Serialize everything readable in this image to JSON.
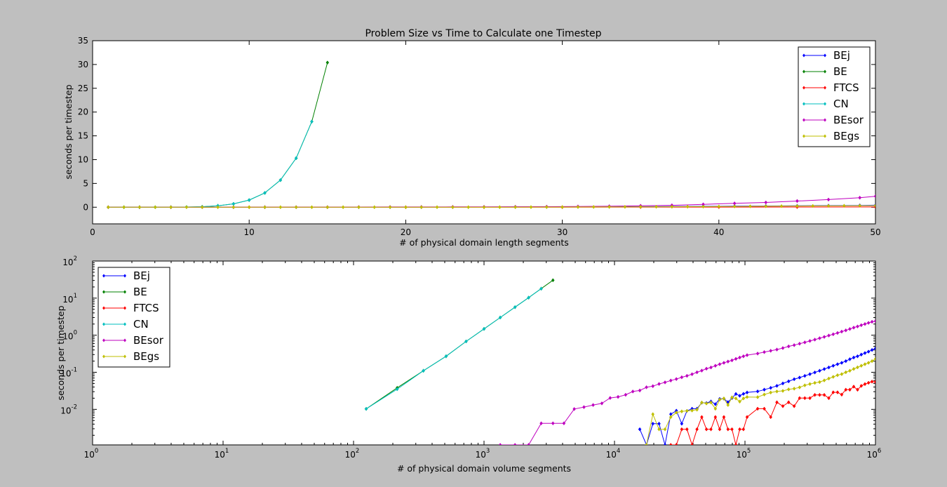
{
  "colors": {
    "figure_background": "#bfbfbf",
    "axes_background": "#ffffff",
    "BEj": "#0000ff",
    "BE": "#008000",
    "FTCS": "#ff0000",
    "CN": "#00bfbf",
    "BEsor": "#bf00bf",
    "BEgs": "#bfbf00"
  },
  "chart_data": [
    {
      "type": "line",
      "title": "Problem Size vs Time to Calculate one Timestep",
      "xlabel": "# of physical domain length segments",
      "ylabel": "seconds per timestep",
      "xlim": [
        0,
        50
      ],
      "ylim": [
        -3.5,
        35
      ],
      "xscale": "linear",
      "yscale": "linear",
      "xticks": [
        0,
        10,
        20,
        30,
        40,
        50
      ],
      "xtick_labels": [
        "0",
        "10",
        "20",
        "30",
        "40",
        "50"
      ],
      "yticks": [
        0,
        5,
        10,
        15,
        20,
        25,
        30,
        35
      ],
      "ytick_labels": [
        "0",
        "5",
        "10",
        "15",
        "20",
        "25",
        "30",
        "35"
      ],
      "legend": {
        "position": "top-right",
        "entries": [
          "BEj",
          "BE",
          "FTCS",
          "CN",
          "BEsor",
          "BEgs"
        ]
      },
      "series": [
        {
          "name": "BEj",
          "x": [
            1,
            3,
            5,
            7,
            9,
            11,
            13,
            15,
            17,
            19,
            21,
            23,
            25,
            27,
            29,
            31,
            33,
            35,
            37,
            39,
            41,
            43,
            45,
            47,
            49,
            50
          ],
          "y": [
            0,
            0,
            0,
            0,
            0.001,
            0.002,
            0.003,
            0.005,
            0.008,
            0.012,
            0.018,
            0.026,
            0.036,
            0.048,
            0.062,
            0.08,
            0.1,
            0.12,
            0.15,
            0.18,
            0.21,
            0.25,
            0.29,
            0.33,
            0.38,
            0.42
          ]
        },
        {
          "name": "BE",
          "x": [
            1,
            2,
            3,
            4,
            5,
            6,
            7,
            8,
            9,
            10,
            11,
            12,
            13,
            14,
            15
          ],
          "y": [
            0,
            0.001,
            0.002,
            0.005,
            0.015,
            0.04,
            0.1,
            0.3,
            0.7,
            1.5,
            3.0,
            5.7,
            10.3,
            18.0,
            30.4
          ]
        },
        {
          "name": "FTCS",
          "x": [
            1,
            5,
            10,
            15,
            20,
            25,
            30,
            35,
            40,
            45,
            50
          ],
          "y": [
            0,
            0,
            0,
            0,
            0.002,
            0.003,
            0.01,
            0.02,
            0.03,
            0.045,
            0.055
          ]
        },
        {
          "name": "CN",
          "x": [
            1,
            2,
            3,
            4,
            5,
            6,
            7,
            8,
            9,
            10,
            11,
            12,
            13,
            14
          ],
          "y": [
            0,
            0.001,
            0.002,
            0.005,
            0.015,
            0.04,
            0.1,
            0.3,
            0.7,
            1.5,
            3.0,
            5.7,
            10.3,
            18.0
          ]
        },
        {
          "name": "BEsor",
          "x": [
            1,
            3,
            5,
            7,
            9,
            11,
            13,
            15,
            17,
            19,
            21,
            23,
            25,
            27,
            29,
            31,
            33,
            35,
            37,
            39,
            41,
            43,
            45,
            47,
            49,
            50
          ],
          "y": [
            0,
            0.001,
            0.002,
            0.004,
            0.01,
            0.015,
            0.02,
            0.03,
            0.04,
            0.05,
            0.06,
            0.07,
            0.08,
            0.1,
            0.12,
            0.15,
            0.2,
            0.3,
            0.4,
            0.6,
            0.8,
            1.0,
            1.3,
            1.6,
            2.0,
            2.3
          ]
        },
        {
          "name": "BEgs",
          "x": [
            1,
            2,
            3,
            4,
            5,
            6,
            7,
            8,
            9,
            10,
            11,
            12,
            13,
            14,
            15,
            16,
            17,
            18,
            19,
            20,
            21,
            22,
            23,
            24,
            25,
            26,
            27,
            28,
            29,
            30,
            31,
            32,
            33,
            34,
            35,
            36,
            37,
            38,
            39,
            40,
            41,
            42,
            43,
            44,
            45,
            46,
            47,
            48,
            49,
            50
          ],
          "y": [
            0,
            0,
            0,
            0,
            0,
            0,
            0,
            0,
            0,
            0,
            0,
            0,
            0,
            0,
            0.001,
            0.001,
            0.001,
            0.002,
            0.002,
            0.003,
            0.004,
            0.005,
            0.006,
            0.008,
            0.01,
            0.012,
            0.015,
            0.02,
            0.025,
            0.03,
            0.04,
            0.05,
            0.06,
            0.07,
            0.08,
            0.09,
            0.1,
            0.11,
            0.12,
            0.14,
            0.16,
            0.18,
            0.2,
            0.22,
            0.24,
            0.26,
            0.28,
            0.3,
            0.32,
            0.33
          ]
        }
      ]
    },
    {
      "type": "line",
      "xlabel": "# of physical domain volume segments",
      "ylabel": "seconds per timestep",
      "xscale": "log",
      "yscale": "log",
      "xlim": [
        1,
        1000000
      ],
      "ylim": [
        0.0011,
        100
      ],
      "xticks": [
        1,
        10,
        100,
        1000,
        10000,
        100000,
        1000000
      ],
      "xtick_base": [
        "10",
        "10",
        "10",
        "10",
        "10",
        "10",
        "10"
      ],
      "xtick_exp": [
        "0",
        "1",
        "2",
        "3",
        "4",
        "5",
        "6"
      ],
      "yticks": [
        0.01,
        0.1,
        1,
        10,
        100
      ],
      "ytick_base": [
        "10",
        "10",
        "10",
        "10",
        "10"
      ],
      "ytick_exp": [
        "-2",
        "-1",
        "0",
        "1",
        "2"
      ],
      "legend": {
        "position": "top-left",
        "entries": [
          "BEj",
          "BE",
          "FTCS",
          "CN",
          "BEsor",
          "BEgs"
        ]
      },
      "series": [
        {
          "name": "BEj",
          "x": [
            15625,
            17576,
            19683,
            21952,
            24389,
            27000,
            29791,
            32768,
            35937,
            39304,
            42875,
            46656,
            50653,
            54872,
            59319,
            64000,
            68921,
            74088,
            79507,
            85184,
            91125,
            97336,
            103823,
            125000,
            140608,
            157464,
            175616,
            195112,
            216000,
            238328,
            262144,
            287496,
            314432,
            343000,
            373248,
            405224,
            438976,
            474552,
            512000,
            551368,
            592704,
            636056,
            681472,
            729000,
            778688,
            830584,
            884736,
            941192,
            1000000
          ],
          "y": [
            0.0029,
            0.0011,
            0.0041,
            0.0041,
            0.0011,
            0.0074,
            0.0092,
            0.0041,
            0.0091,
            0.0104,
            0.0104,
            0.0151,
            0.0148,
            0.0163,
            0.0138,
            0.0191,
            0.0194,
            0.0156,
            0.0202,
            0.026,
            0.0232,
            0.0262,
            0.0285,
            0.0305,
            0.034,
            0.038,
            0.043,
            0.05,
            0.057,
            0.065,
            0.072,
            0.08,
            0.089,
            0.099,
            0.11,
            0.122,
            0.135,
            0.15,
            0.165,
            0.18,
            0.2,
            0.225,
            0.25,
            0.27,
            0.3,
            0.33,
            0.36,
            0.4,
            0.44
          ]
        },
        {
          "name": "BE",
          "x": [
            125,
            216,
            343,
            512,
            729,
            1000,
            1331,
            1728,
            2197,
            2744,
            3375
          ],
          "y": [
            0.0103,
            0.038,
            0.11,
            0.27,
            0.68,
            1.48,
            3.0,
            5.7,
            10.3,
            18.0,
            30.4
          ]
        },
        {
          "name": "FTCS",
          "x": [
            27000,
            29791,
            32768,
            35937,
            39304,
            42875,
            46656,
            50653,
            54872,
            59319,
            64000,
            68921,
            74088,
            79507,
            85184,
            91125,
            97336,
            103823,
            125000,
            140608,
            157464,
            175616,
            195112,
            216000,
            238328,
            262144,
            287496,
            314432,
            343000,
            373248,
            405224,
            438976,
            474552,
            512000,
            551368,
            592704,
            636056,
            681472,
            729000,
            778688,
            830584,
            884736,
            941192,
            1000000
          ],
          "y": [
            0.0011,
            0.0011,
            0.0029,
            0.0029,
            0.0011,
            0.0029,
            0.0062,
            0.0029,
            0.0029,
            0.0062,
            0.0029,
            0.0062,
            0.0029,
            0.0029,
            0.0011,
            0.0029,
            0.0029,
            0.0062,
            0.0104,
            0.0104,
            0.0062,
            0.0155,
            0.0122,
            0.0155,
            0.0122,
            0.0201,
            0.0201,
            0.0201,
            0.0245,
            0.0245,
            0.0245,
            0.0201,
            0.0288,
            0.0288,
            0.025,
            0.0339,
            0.0339,
            0.041,
            0.0339,
            0.043,
            0.048,
            0.052,
            0.056,
            0.055
          ]
        },
        {
          "name": "CN",
          "x": [
            125,
            216,
            343,
            512,
            729,
            1000,
            1331,
            1728,
            2197,
            2744
          ],
          "y": [
            0.0103,
            0.035,
            0.11,
            0.27,
            0.68,
            1.48,
            3.0,
            5.7,
            10.3,
            18.0
          ]
        },
        {
          "name": "BEsor",
          "x": [
            1331,
            1728,
            2197,
            2744,
            3375,
            4096,
            4913,
            5832,
            6859,
            8000,
            9261,
            10648,
            12167,
            13824,
            15625,
            17576,
            19683,
            21952,
            24389,
            27000,
            29791,
            32768,
            35937,
            39304,
            42875,
            46656,
            50653,
            54872,
            59319,
            64000,
            68921,
            74088,
            79507,
            85184,
            91125,
            97336,
            103823,
            125000,
            140608,
            157464,
            175616,
            195112,
            216000,
            238328,
            262144,
            287496,
            314432,
            343000,
            373248,
            405224,
            438976,
            474552,
            512000,
            551368,
            592704,
            636056,
            681472,
            729000,
            778688,
            830584,
            884736,
            941192,
            1000000
          ],
          "y": [
            0.0011,
            0.0011,
            0.0011,
            0.0042,
            0.0042,
            0.0042,
            0.0102,
            0.0115,
            0.0131,
            0.0145,
            0.0203,
            0.0217,
            0.0247,
            0.0303,
            0.0323,
            0.0394,
            0.0422,
            0.0484,
            0.0534,
            0.0599,
            0.0656,
            0.0733,
            0.0802,
            0.0888,
            0.1,
            0.111,
            0.125,
            0.135,
            0.15,
            0.165,
            0.18,
            0.195,
            0.21,
            0.23,
            0.25,
            0.27,
            0.29,
            0.32,
            0.35,
            0.38,
            0.41,
            0.45,
            0.5,
            0.54,
            0.59,
            0.64,
            0.7,
            0.76,
            0.83,
            0.9,
            0.98,
            1.06,
            1.15,
            1.25,
            1.35,
            1.47,
            1.6,
            1.72,
            1.86,
            2.0,
            2.15,
            2.3,
            2.4
          ]
        },
        {
          "name": "BEgs",
          "x": [
            17576,
            19683,
            21952,
            24389,
            27000,
            29791,
            32768,
            35937,
            39304,
            42875,
            46656,
            50653,
            54872,
            59319,
            64000,
            68921,
            74088,
            79507,
            85184,
            91125,
            97336,
            103823,
            125000,
            140608,
            157464,
            175616,
            195112,
            216000,
            238328,
            262144,
            287496,
            314432,
            343000,
            373248,
            405224,
            438976,
            474552,
            512000,
            551368,
            592704,
            636056,
            681472,
            729000,
            778688,
            830584,
            884736,
            941192,
            1000000
          ],
          "y": [
            0.0011,
            0.0074,
            0.0029,
            0.0029,
            0.0062,
            0.0082,
            0.0088,
            0.0091,
            0.0093,
            0.0098,
            0.0153,
            0.0144,
            0.0153,
            0.0104,
            0.0183,
            0.0197,
            0.0131,
            0.0211,
            0.0197,
            0.0162,
            0.0197,
            0.0215,
            0.0213,
            0.0251,
            0.0284,
            0.0304,
            0.0315,
            0.0346,
            0.0362,
            0.0392,
            0.0445,
            0.0482,
            0.0518,
            0.0545,
            0.0604,
            0.0678,
            0.0752,
            0.0834,
            0.0892,
            0.1,
            0.11,
            0.123,
            0.136,
            0.15,
            0.165,
            0.18,
            0.2,
            0.23
          ]
        }
      ]
    }
  ]
}
